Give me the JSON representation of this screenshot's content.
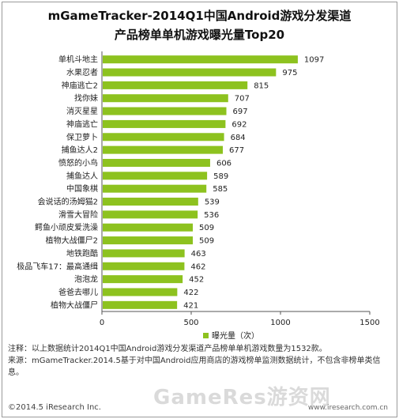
{
  "title_line1": "mGameTracker-2014Q1中国Android游戏分发渠道",
  "title_line2": "产品榜单单机游戏曝光量Top20",
  "notes": {
    "line1": "注释：以上数据统计2014Q1中国Android游戏分发渠道产品榜单单机游戏数量为1532款。",
    "line2": "来源：mGameTracker.2014.5基于对中国Android应用商店的游戏榜单监测数据统计，不包含非榜单类信息。"
  },
  "footer": {
    "copyright": "©2014.5 iResearch Inc.",
    "site": "www.iresearch.com.cn"
  },
  "watermark": "GameRes游资网",
  "colors": {
    "bar": "#8dc21f",
    "axis": "#555555",
    "text": "#222222"
  },
  "chart_data": {
    "type": "bar",
    "orientation": "horizontal",
    "categories": [
      "单机斗地主",
      "水果忍者",
      "神庙逃亡2",
      "找你妹",
      "消灭星星",
      "神庙逃亡",
      "保卫萝卜",
      "捕鱼达人2",
      "愤怒的小鸟",
      "捕鱼达人",
      "中国象棋",
      "会说话的汤姆猫2",
      "滑雪大冒险",
      "鳄鱼小顽皮爱洗澡",
      "植物大战僵尸2",
      "地铁跑酷",
      "极品飞车17：最高通缉",
      "泡泡龙",
      "爸爸去哪儿",
      "植物大战僵尸"
    ],
    "series": [
      {
        "name": "曝光量（次）",
        "values": [
          1097,
          975,
          815,
          707,
          697,
          692,
          684,
          677,
          606,
          589,
          585,
          539,
          536,
          509,
          509,
          463,
          462,
          452,
          422,
          421
        ]
      }
    ],
    "xlim": [
      0,
      1500
    ],
    "xticks": [
      0,
      500,
      1000,
      1500
    ],
    "data_labels": true,
    "legend": "bottom-right",
    "grid": false
  }
}
